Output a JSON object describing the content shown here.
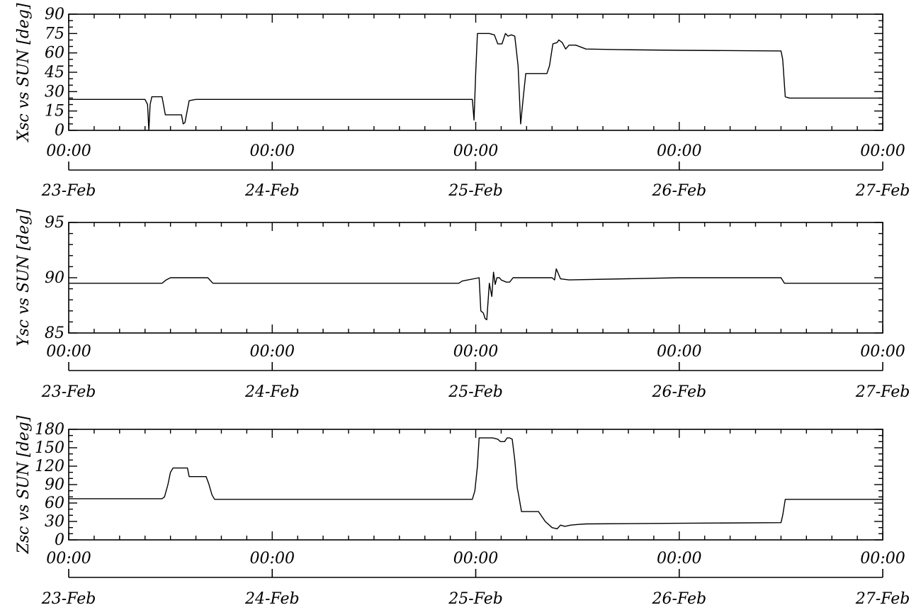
{
  "chart_data": [
    {
      "type": "line",
      "ylabel": "Xsc vs SUN [deg]",
      "ylim": [
        0,
        90
      ],
      "yticks": [
        0,
        15,
        30,
        45,
        60,
        75,
        90
      ],
      "xlim": [
        0,
        96
      ],
      "x_time_ticks": [
        "00:00",
        "00:00",
        "00:00",
        "00:00",
        "00:00"
      ],
      "x_date_ticks": [
        "23-Feb",
        "24-Feb",
        "25-Feb",
        "26-Feb",
        "27-Feb"
      ],
      "series": [
        {
          "x": [
            0,
            9.0,
            9.3,
            9.45,
            9.6,
            9.8,
            10.0,
            11.0,
            11.4,
            12.2,
            12.6,
            13.3,
            13.5,
            13.7,
            14.2,
            15,
            24,
            36,
            47.6,
            47.8,
            48.0,
            48.2,
            48.4,
            49.6,
            50.2,
            50.6,
            51.1,
            51.5,
            51.8,
            52.2,
            52.6,
            53.0,
            53.3,
            53.6,
            53.9,
            55.0,
            56.4,
            56.7,
            57.1,
            57.6,
            57.8,
            58.2,
            58.6,
            59.0,
            59.3,
            59.8,
            61,
            65,
            72,
            84.0,
            84.2,
            84.5,
            85.0,
            96
          ],
          "y": [
            24,
            24,
            20,
            0,
            20,
            26,
            26,
            26,
            12,
            12,
            12,
            12,
            5,
            6,
            23,
            24,
            24,
            24,
            24,
            8,
            45,
            75,
            75,
            75,
            74,
            67,
            67,
            75,
            73,
            74,
            73,
            50,
            5,
            25,
            44,
            44,
            44,
            50,
            67,
            68,
            70,
            68,
            63,
            66,
            66,
            66,
            63,
            62.5,
            62,
            61.5,
            55,
            26,
            25,
            25
          ]
        }
      ]
    },
    {
      "type": "line",
      "ylabel": "Ysc vs SUN [deg]",
      "ylim": [
        85,
        95
      ],
      "yticks": [
        85,
        90,
        95
      ],
      "xlim": [
        0,
        96
      ],
      "x_time_ticks": [
        "00:00",
        "00:00",
        "00:00",
        "00:00",
        "00:00"
      ],
      "x_date_ticks": [
        "23-Feb",
        "24-Feb",
        "25-Feb",
        "26-Feb",
        "27-Feb"
      ],
      "series": [
        {
          "x": [
            0,
            11,
            11.5,
            12,
            16,
            16.4,
            17,
            20,
            33,
            45.5,
            46.0,
            46.4,
            48.4,
            48.6,
            48.9,
            49.1,
            49.3,
            49.6,
            49.9,
            50.1,
            50.3,
            50.5,
            50.8,
            51.0,
            51.6,
            52.0,
            52.4,
            53.0,
            55.0,
            56.0,
            56.4,
            57.0,
            57.3,
            57.5,
            58.0,
            59.0,
            72,
            84.0,
            84.4,
            96
          ],
          "y": [
            89.5,
            89.5,
            89.8,
            90,
            90,
            90,
            89.5,
            89.5,
            89.5,
            89.5,
            89.5,
            89.7,
            90,
            87,
            86.8,
            86.3,
            86.2,
            89.5,
            88.3,
            90.5,
            89.4,
            90,
            90,
            89.8,
            89.6,
            89.6,
            90,
            90,
            90,
            90,
            90,
            90.0,
            89.8,
            90.8,
            89.9,
            89.8,
            90,
            90,
            89.5,
            89.5
          ]
        }
      ]
    },
    {
      "type": "line",
      "ylabel": "Zsc vs SUN [deg]",
      "ylim": [
        0,
        180
      ],
      "yticks": [
        0,
        30,
        60,
        90,
        120,
        150,
        180
      ],
      "xlim": [
        0,
        96
      ],
      "x_time_ticks": [
        "00:00",
        "00:00",
        "00:00",
        "00:00",
        "00:00"
      ],
      "x_date_ticks": [
        "23-Feb",
        "24-Feb",
        "25-Feb",
        "26-Feb",
        "27-Feb"
      ],
      "series": [
        {
          "x": [
            0,
            11,
            11.3,
            11.7,
            12.0,
            12.3,
            14.0,
            14.2,
            16.2,
            16.5,
            16.9,
            17.2,
            24,
            36,
            47.6,
            47.9,
            48.2,
            48.4,
            50.0,
            50.6,
            50.9,
            51.4,
            51.7,
            52.0,
            52.3,
            52.6,
            52.9,
            53.1,
            53.4,
            55.0,
            55.4,
            56.2,
            57.0,
            57.6,
            58.0,
            58.5,
            59.2,
            60.0,
            61,
            72,
            84.0,
            84.2,
            84.5,
            96
          ],
          "y": [
            67,
            67,
            70,
            90,
            110,
            117,
            117,
            103,
            103,
            92,
            73,
            66,
            66,
            66,
            66,
            80,
            120,
            166,
            166,
            164,
            160,
            160,
            166,
            166,
            164,
            130,
            85,
            70,
            46,
            46,
            46,
            30,
            20,
            18,
            24,
            22,
            24,
            25,
            26,
            27,
            28,
            40,
            66,
            66
          ]
        }
      ]
    }
  ]
}
